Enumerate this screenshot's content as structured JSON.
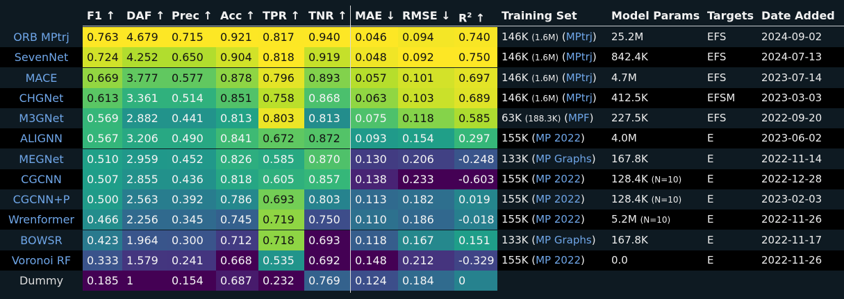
{
  "chart_data": {
    "type": "table",
    "columns": [
      {
        "key": "F1",
        "label": "F1 ↑"
      },
      {
        "key": "DAF",
        "label": "DAF ↑"
      },
      {
        "key": "Prec",
        "label": "Prec ↑"
      },
      {
        "key": "Acc",
        "label": "Acc ↑"
      },
      {
        "key": "TPR",
        "label": "TPR ↑"
      },
      {
        "key": "TNR",
        "label": "TNR ↑"
      },
      {
        "key": "MAE",
        "label": "MAE ↓"
      },
      {
        "key": "RMSE",
        "label": "RMSE ↓"
      },
      {
        "key": "R2",
        "label": "R",
        "sup": "2",
        "suffix": " ↑"
      },
      {
        "key": "train",
        "label": "Training Set"
      },
      {
        "key": "params",
        "label": "Model Params"
      },
      {
        "key": "targets",
        "label": "Targets"
      },
      {
        "key": "date",
        "label": "Date Added"
      }
    ],
    "rows": [
      {
        "model": "ORB MPtrj",
        "F1": "0.763",
        "DAF": "4.679",
        "Prec": "0.715",
        "Acc": "0.921",
        "TPR": "0.817",
        "TNR": "0.940",
        "MAE": "0.046",
        "RMSE": "0.094",
        "R2": "0.740",
        "train": {
          "n": "146K",
          "sub": "(1.6M)",
          "src": "MPtrj"
        },
        "params": "25.2M",
        "params_note": "",
        "targets": "EFS",
        "date": "2024-09-02"
      },
      {
        "model": "SevenNet",
        "F1": "0.724",
        "DAF": "4.252",
        "Prec": "0.650",
        "Acc": "0.904",
        "TPR": "0.818",
        "TNR": "0.919",
        "MAE": "0.048",
        "RMSE": "0.092",
        "R2": "0.750",
        "train": {
          "n": "146K",
          "sub": "(1.6M)",
          "src": "MPtrj"
        },
        "params": "842.4K",
        "params_note": "",
        "targets": "EFS",
        "date": "2024-07-13"
      },
      {
        "model": "MACE",
        "F1": "0.669",
        "DAF": "3.777",
        "Prec": "0.577",
        "Acc": "0.878",
        "TPR": "0.796",
        "TNR": "0.893",
        "MAE": "0.057",
        "RMSE": "0.101",
        "R2": "0.697",
        "train": {
          "n": "146K",
          "sub": "(1.6M)",
          "src": "MPtrj"
        },
        "params": "4.7M",
        "params_note": "",
        "targets": "EFS",
        "date": "2023-07-14"
      },
      {
        "model": "CHGNet",
        "F1": "0.613",
        "DAF": "3.361",
        "Prec": "0.514",
        "Acc": "0.851",
        "TPR": "0.758",
        "TNR": "0.868",
        "MAE": "0.063",
        "RMSE": "0.103",
        "R2": "0.689",
        "train": {
          "n": "146K",
          "sub": "(1.6M)",
          "src": "MPtrj"
        },
        "params": "412.5K",
        "params_note": "",
        "targets": "EFSM",
        "date": "2023-03-03"
      },
      {
        "model": "M3GNet",
        "F1": "0.569",
        "DAF": "2.882",
        "Prec": "0.441",
        "Acc": "0.813",
        "TPR": "0.803",
        "TNR": "0.813",
        "MAE": "0.075",
        "RMSE": "0.118",
        "R2": "0.585",
        "train": {
          "n": "63K",
          "sub": "(188.3K)",
          "src": "MPF"
        },
        "params": "227.5K",
        "params_note": "",
        "targets": "EFS",
        "date": "2022-09-20"
      },
      {
        "model": "ALIGNN",
        "F1": "0.567",
        "DAF": "3.206",
        "Prec": "0.490",
        "Acc": "0.841",
        "TPR": "0.672",
        "TNR": "0.872",
        "MAE": "0.093",
        "RMSE": "0.154",
        "R2": "0.297",
        "train": {
          "n": "155K",
          "sub": "",
          "src": "MP 2022"
        },
        "params": "4.0M",
        "params_note": "",
        "targets": "E",
        "date": "2023-06-02"
      },
      {
        "model": "MEGNet",
        "F1": "0.510",
        "DAF": "2.959",
        "Prec": "0.452",
        "Acc": "0.826",
        "TPR": "0.585",
        "TNR": "0.870",
        "MAE": "0.130",
        "RMSE": "0.206",
        "R2": "-0.248",
        "train": {
          "n": "133K",
          "sub": "",
          "src": "MP Graphs"
        },
        "params": "167.8K",
        "params_note": "",
        "targets": "E",
        "date": "2022-11-14"
      },
      {
        "model": "CGCNN",
        "F1": "0.507",
        "DAF": "2.855",
        "Prec": "0.436",
        "Acc": "0.818",
        "TPR": "0.605",
        "TNR": "0.857",
        "MAE": "0.138",
        "RMSE": "0.233",
        "R2": "-0.603",
        "train": {
          "n": "155K",
          "sub": "",
          "src": "MP 2022"
        },
        "params": "128.4K",
        "params_note": "(N=10)",
        "targets": "E",
        "date": "2022-12-28"
      },
      {
        "model": "CGCNN+P",
        "F1": "0.500",
        "DAF": "2.563",
        "Prec": "0.392",
        "Acc": "0.786",
        "TPR": "0.693",
        "TNR": "0.803",
        "MAE": "0.113",
        "RMSE": "0.182",
        "R2": "0.019",
        "train": {
          "n": "155K",
          "sub": "",
          "src": "MP 2022"
        },
        "params": "128.4K",
        "params_note": "(N=10)",
        "targets": "E",
        "date": "2023-02-03"
      },
      {
        "model": "Wrenformer",
        "F1": "0.466",
        "DAF": "2.256",
        "Prec": "0.345",
        "Acc": "0.745",
        "TPR": "0.719",
        "TNR": "0.750",
        "MAE": "0.110",
        "RMSE": "0.186",
        "R2": "-0.018",
        "train": {
          "n": "155K",
          "sub": "",
          "src": "MP 2022"
        },
        "params": "5.2M",
        "params_note": "(N=10)",
        "targets": "E",
        "date": "2022-11-26"
      },
      {
        "model": "BOWSR",
        "F1": "0.423",
        "DAF": "1.964",
        "Prec": "0.300",
        "Acc": "0.712",
        "TPR": "0.718",
        "TNR": "0.693",
        "MAE": "0.118",
        "RMSE": "0.167",
        "R2": "0.151",
        "train": {
          "n": "133K",
          "sub": "",
          "src": "MP Graphs"
        },
        "params": "167.8K",
        "params_note": "",
        "targets": "E",
        "date": "2022-11-17"
      },
      {
        "model": "Voronoi RF",
        "F1": "0.333",
        "DAF": "1.579",
        "Prec": "0.241",
        "Acc": "0.668",
        "TPR": "0.535",
        "TNR": "0.692",
        "MAE": "0.148",
        "RMSE": "0.212",
        "R2": "-0.329",
        "train": {
          "n": "155K",
          "sub": "",
          "src": "MP 2022"
        },
        "params": "0.0",
        "params_note": "",
        "targets": "E",
        "date": "2022-11-26"
      },
      {
        "model": "Dummy",
        "F1": "0.185",
        "DAF": "1",
        "Prec": "0.154",
        "Acc": "0.687",
        "TPR": "0.232",
        "TNR": "0.769",
        "MAE": "0.124",
        "RMSE": "0.184",
        "R2": "0",
        "train": null,
        "params": "",
        "params_note": "",
        "targets": "",
        "date": ""
      }
    ],
    "higher_is_better": [
      "F1",
      "DAF",
      "Prec",
      "Acc",
      "TPR",
      "TNR",
      "R2"
    ],
    "lower_is_better": [
      "MAE",
      "RMSE"
    ],
    "colormap": "viridis",
    "colors": {
      "background": "#0e1a22",
      "row_dark": "#000000",
      "row_mid": "#0e1a22",
      "link": "#6fa6e8",
      "text": "#f2f2f2"
    }
  }
}
